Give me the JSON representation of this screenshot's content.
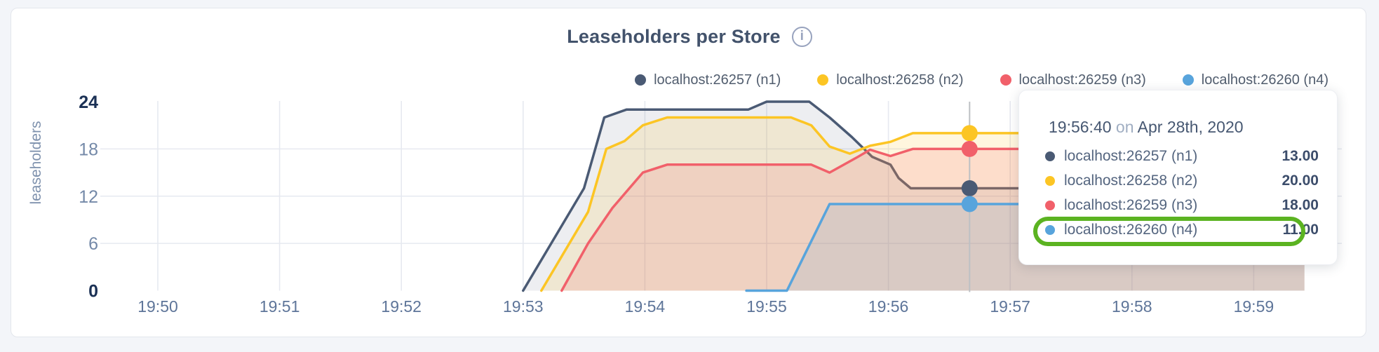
{
  "page": {
    "background": "#f3f5f9",
    "card_background": "#ffffff"
  },
  "header": {
    "title": "Leaseholders per Store",
    "info_icon_glyph": "i"
  },
  "legend": {
    "items": [
      {
        "label": "localhost:26257 (n1)",
        "color": "#4a5a74"
      },
      {
        "label": "localhost:26258 (n2)",
        "color": "#fcc524"
      },
      {
        "label": "localhost:26259 (n3)",
        "color": "#f1606a"
      },
      {
        "label": "localhost:26260 (n4)",
        "color": "#58a4dc"
      }
    ]
  },
  "chart_data": {
    "type": "area",
    "title": "Leaseholders per Store",
    "xlabel": "",
    "ylabel": "leaseholders",
    "ylim": [
      0,
      24
    ],
    "grid": true,
    "legend_position": "top-right",
    "x_unit": "seconds after 19:50:00",
    "x_ticks": [
      {
        "t": 0,
        "label": "19:50"
      },
      {
        "t": 60,
        "label": "19:51"
      },
      {
        "t": 120,
        "label": "19:52"
      },
      {
        "t": 180,
        "label": "19:53"
      },
      {
        "t": 240,
        "label": "19:54"
      },
      {
        "t": 300,
        "label": "19:55"
      },
      {
        "t": 360,
        "label": "19:56"
      },
      {
        "t": 420,
        "label": "19:57"
      },
      {
        "t": 480,
        "label": "19:58"
      },
      {
        "t": 540,
        "label": "19:59"
      }
    ],
    "y_ticks": [
      {
        "v": 0,
        "label": "0",
        "bold": true,
        "grid": false
      },
      {
        "v": 6,
        "label": "6",
        "bold": false,
        "grid": true
      },
      {
        "v": 12,
        "label": "12",
        "bold": false,
        "grid": true
      },
      {
        "v": 18,
        "label": "18",
        "bold": false,
        "grid": true
      },
      {
        "v": 24,
        "label": "24",
        "bold": true,
        "grid": false
      }
    ],
    "series": [
      {
        "name": "localhost:26257 (n1)",
        "color": "#4a5a74",
        "fill_opacity": 0.1,
        "points": [
          [
            180,
            0
          ],
          [
            210,
            13
          ],
          [
            220,
            22
          ],
          [
            231,
            23
          ],
          [
            291,
            23
          ],
          [
            300,
            24
          ],
          [
            321,
            24
          ],
          [
            331,
            22
          ],
          [
            342,
            19.5
          ],
          [
            352,
            17
          ],
          [
            361,
            16
          ],
          [
            365,
            14.3
          ],
          [
            371,
            13
          ],
          [
            565,
            13
          ]
        ]
      },
      {
        "name": "localhost:26258 (n2)",
        "color": "#fcc524",
        "fill_opacity": 0.15,
        "points": [
          [
            189,
            0
          ],
          [
            212,
            10
          ],
          [
            221,
            18
          ],
          [
            230,
            19
          ],
          [
            239,
            21
          ],
          [
            251,
            22
          ],
          [
            312,
            22
          ],
          [
            322,
            21
          ],
          [
            331,
            18.3
          ],
          [
            341,
            17.4
          ],
          [
            351,
            18.4
          ],
          [
            361,
            18.9
          ],
          [
            372,
            20
          ],
          [
            565,
            20
          ]
        ]
      },
      {
        "name": "localhost:26259 (n3)",
        "color": "#f1606a",
        "fill_opacity": 0.16,
        "points": [
          [
            199,
            0
          ],
          [
            212,
            6
          ],
          [
            224,
            10.5
          ],
          [
            239,
            15
          ],
          [
            251,
            16
          ],
          [
            322,
            16
          ],
          [
            331,
            15
          ],
          [
            345,
            17
          ],
          [
            351,
            17.9
          ],
          [
            361,
            17.1
          ],
          [
            372,
            18
          ],
          [
            565,
            18
          ]
        ]
      },
      {
        "name": "localhost:26260 (n4)",
        "color": "#58a4dc",
        "fill_opacity": 0.14,
        "points": [
          [
            290,
            0
          ],
          [
            310,
            0
          ],
          [
            331,
            11
          ],
          [
            565,
            11
          ]
        ]
      }
    ],
    "hover": {
      "t": 400,
      "time_label": "19:56:40",
      "values": [
        13,
        20,
        18,
        11
      ]
    }
  },
  "tooltip": {
    "time": "19:56:40",
    "conj": "on",
    "date": "Apr 28th, 2020",
    "rows": [
      {
        "label": "localhost:26257 (n1)",
        "value": "13.00",
        "color": "#4a5a74",
        "highlighted": false
      },
      {
        "label": "localhost:26258 (n2)",
        "value": "20.00",
        "color": "#fcc524",
        "highlighted": false
      },
      {
        "label": "localhost:26259 (n3)",
        "value": "18.00",
        "color": "#f1606a",
        "highlighted": false
      },
      {
        "label": "localhost:26260 (n4)",
        "value": "11.00",
        "color": "#58a4dc",
        "highlighted": true
      }
    ],
    "highlight_ring_color": "#5bb321"
  }
}
